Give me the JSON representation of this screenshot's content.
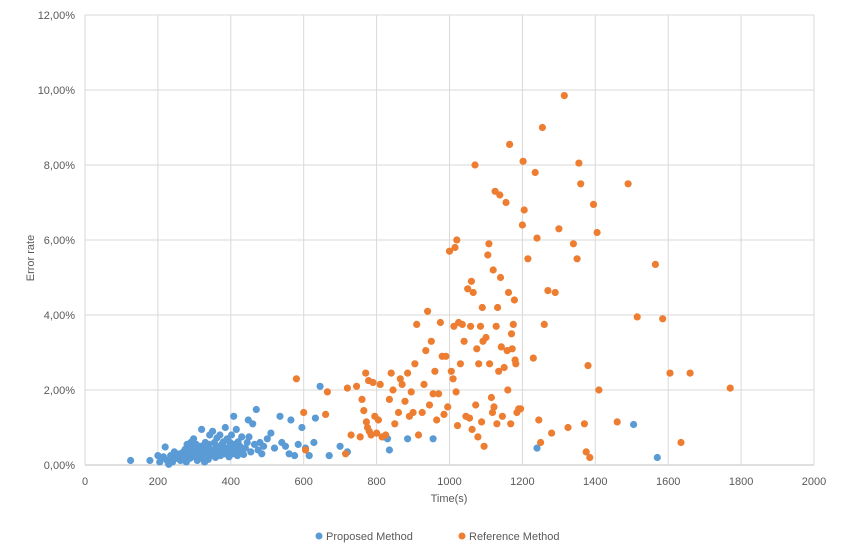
{
  "chart_data": {
    "type": "scatter",
    "xlabel": "Time(s)",
    "ylabel": "Error rate",
    "xlim": [
      0,
      2000
    ],
    "ylim": [
      0,
      0.12
    ],
    "x_ticks": [
      "0",
      "200",
      "400",
      "600",
      "800",
      "1000",
      "1200",
      "1400",
      "1600",
      "1800",
      "2000"
    ],
    "y_ticks": [
      "0,00%",
      "2,00%",
      "4,00%",
      "6,00%",
      "8,00%",
      "10,00%",
      "12,00%"
    ],
    "grid": true,
    "legend_position": "bottom",
    "series": [
      {
        "name": "Proposed Method",
        "color": "#5B9BD5",
        "points": [
          [
            125,
            0.0012
          ],
          [
            178,
            0.0012
          ],
          [
            200,
            0.0025
          ],
          [
            205,
            0.0008
          ],
          [
            210,
            0.0018
          ],
          [
            215,
            0.0022
          ],
          [
            220,
            0.0048
          ],
          [
            225,
            0.0012
          ],
          [
            230,
            0.0002
          ],
          [
            235,
            0.0025
          ],
          [
            238,
            0.0015
          ],
          [
            240,
            0.0008
          ],
          [
            245,
            0.0035
          ],
          [
            250,
            0.0028
          ],
          [
            252,
            0.0018
          ],
          [
            258,
            0.0022
          ],
          [
            260,
            0.003
          ],
          [
            262,
            0.0012
          ],
          [
            265,
            0.0025
          ],
          [
            270,
            0.0035
          ],
          [
            272,
            0.0015
          ],
          [
            275,
            0.0042
          ],
          [
            278,
            0.0008
          ],
          [
            280,
            0.0055
          ],
          [
            282,
            0.0025
          ],
          [
            285,
            0.0035
          ],
          [
            288,
            0.0018
          ],
          [
            290,
            0.006
          ],
          [
            292,
            0.0045
          ],
          [
            295,
            0.0028
          ],
          [
            298,
            0.007
          ],
          [
            300,
            0.0035
          ],
          [
            302,
            0.0022
          ],
          [
            305,
            0.0055
          ],
          [
            308,
            0.0012
          ],
          [
            310,
            0.004
          ],
          [
            312,
            0.003
          ],
          [
            315,
            0.0018
          ],
          [
            318,
            0.005
          ],
          [
            320,
            0.0095
          ],
          [
            322,
            0.0025
          ],
          [
            325,
            0.0035
          ],
          [
            328,
            0.0008
          ],
          [
            330,
            0.006
          ],
          [
            332,
            0.0045
          ],
          [
            335,
            0.003
          ],
          [
            338,
            0.0015
          ],
          [
            340,
            0.0055
          ],
          [
            342,
            0.008
          ],
          [
            345,
            0.0025
          ],
          [
            348,
            0.004
          ],
          [
            350,
            0.009
          ],
          [
            352,
            0.0035
          ],
          [
            355,
            0.006
          ],
          [
            358,
            0.002
          ],
          [
            360,
            0.005
          ],
          [
            362,
            0.0072
          ],
          [
            365,
            0.003
          ],
          [
            368,
            0.0045
          ],
          [
            370,
            0.008
          ],
          [
            372,
            0.0025
          ],
          [
            375,
            0.0055
          ],
          [
            378,
            0.004
          ],
          [
            380,
            0.0062
          ],
          [
            382,
            0.003
          ],
          [
            385,
            0.01
          ],
          [
            388,
            0.0045
          ],
          [
            390,
            0.007
          ],
          [
            392,
            0.0035
          ],
          [
            395,
            0.0022
          ],
          [
            398,
            0.006
          ],
          [
            400,
            0.0048
          ],
          [
            402,
            0.008
          ],
          [
            405,
            0.003
          ],
          [
            408,
            0.013
          ],
          [
            410,
            0.0055
          ],
          [
            412,
            0.004
          ],
          [
            415,
            0.0095
          ],
          [
            418,
            0.0025
          ],
          [
            420,
            0.0062
          ],
          [
            425,
            0.005
          ],
          [
            428,
            0.0035
          ],
          [
            430,
            0.0075
          ],
          [
            435,
            0.0028
          ],
          [
            440,
            0.0045
          ],
          [
            445,
            0.006
          ],
          [
            448,
            0.012
          ],
          [
            450,
            0.0075
          ],
          [
            455,
            0.0035
          ],
          [
            460,
            0.011
          ],
          [
            465,
            0.0055
          ],
          [
            470,
            0.0148
          ],
          [
            475,
            0.004
          ],
          [
            480,
            0.006
          ],
          [
            485,
            0.003
          ],
          [
            490,
            0.005
          ],
          [
            500,
            0.007
          ],
          [
            510,
            0.0085
          ],
          [
            520,
            0.0045
          ],
          [
            535,
            0.013
          ],
          [
            540,
            0.006
          ],
          [
            550,
            0.005
          ],
          [
            560,
            0.003
          ],
          [
            565,
            0.012
          ],
          [
            575,
            0.0025
          ],
          [
            585,
            0.0055
          ],
          [
            595,
            0.01
          ],
          [
            605,
            0.0045
          ],
          [
            615,
            0.0025
          ],
          [
            628,
            0.006
          ],
          [
            632,
            0.0125
          ],
          [
            645,
            0.021
          ],
          [
            670,
            0.0025
          ],
          [
            700,
            0.005
          ],
          [
            720,
            0.0035
          ],
          [
            820,
            0.0075
          ],
          [
            830,
            0.007
          ],
          [
            835,
            0.004
          ],
          [
            885,
            0.007
          ],
          [
            955,
            0.007
          ],
          [
            1240,
            0.0045
          ],
          [
            1505,
            0.0108
          ],
          [
            1570,
            0.002
          ]
        ]
      },
      {
        "name": "Reference Method",
        "color": "#ED7D31",
        "points": [
          [
            580,
            0.023
          ],
          [
            600,
            0.014
          ],
          [
            605,
            0.004
          ],
          [
            660,
            0.0135
          ],
          [
            665,
            0.0195
          ],
          [
            715,
            0.003
          ],
          [
            720,
            0.0205
          ],
          [
            730,
            0.008
          ],
          [
            745,
            0.021
          ],
          [
            755,
            0.0075
          ],
          [
            760,
            0.0175
          ],
          [
            765,
            0.0145
          ],
          [
            770,
            0.0245
          ],
          [
            772,
            0.0115
          ],
          [
            775,
            0.01
          ],
          [
            778,
            0.0225
          ],
          [
            780,
            0.009
          ],
          [
            785,
            0.008
          ],
          [
            790,
            0.022
          ],
          [
            795,
            0.013
          ],
          [
            800,
            0.0085
          ],
          [
            805,
            0.012
          ],
          [
            810,
            0.0215
          ],
          [
            815,
            0.0075
          ],
          [
            825,
            0.008
          ],
          [
            835,
            0.0175
          ],
          [
            840,
            0.0245
          ],
          [
            845,
            0.02
          ],
          [
            850,
            0.011
          ],
          [
            860,
            0.014
          ],
          [
            865,
            0.023
          ],
          [
            870,
            0.0215
          ],
          [
            878,
            0.017
          ],
          [
            885,
            0.0245
          ],
          [
            890,
            0.013
          ],
          [
            895,
            0.0195
          ],
          [
            900,
            0.014
          ],
          [
            905,
            0.027
          ],
          [
            910,
            0.0375
          ],
          [
            915,
            0.008
          ],
          [
            925,
            0.014
          ],
          [
            930,
            0.0215
          ],
          [
            935,
            0.0305
          ],
          [
            940,
            0.041
          ],
          [
            945,
            0.016
          ],
          [
            950,
            0.033
          ],
          [
            955,
            0.019
          ],
          [
            960,
            0.025
          ],
          [
            965,
            0.012
          ],
          [
            970,
            0.019
          ],
          [
            975,
            0.038
          ],
          [
            980,
            0.029
          ],
          [
            985,
            0.0135
          ],
          [
            990,
            0.029
          ],
          [
            995,
            0.0155
          ],
          [
            1000,
            0.057
          ],
          [
            1005,
            0.025
          ],
          [
            1010,
            0.023
          ],
          [
            1012,
            0.037
          ],
          [
            1015,
            0.058
          ],
          [
            1018,
            0.0195
          ],
          [
            1020,
            0.06
          ],
          [
            1022,
            0.0105
          ],
          [
            1025,
            0.038
          ],
          [
            1030,
            0.027
          ],
          [
            1035,
            0.0375
          ],
          [
            1040,
            0.033
          ],
          [
            1045,
            0.013
          ],
          [
            1050,
            0.047
          ],
          [
            1055,
            0.0125
          ],
          [
            1058,
            0.037
          ],
          [
            1060,
            0.049
          ],
          [
            1062,
            0.0095
          ],
          [
            1065,
            0.046
          ],
          [
            1070,
            0.08
          ],
          [
            1072,
            0.016
          ],
          [
            1075,
            0.031
          ],
          [
            1078,
            0.0075
          ],
          [
            1080,
            0.027
          ],
          [
            1085,
            0.037
          ],
          [
            1088,
            0.0115
          ],
          [
            1090,
            0.042
          ],
          [
            1092,
            0.033
          ],
          [
            1095,
            0.005
          ],
          [
            1100,
            0.034
          ],
          [
            1105,
            0.056
          ],
          [
            1108,
            0.059
          ],
          [
            1110,
            0.027
          ],
          [
            1115,
            0.018
          ],
          [
            1118,
            0.014
          ],
          [
            1120,
            0.052
          ],
          [
            1122,
            0.0155
          ],
          [
            1125,
            0.073
          ],
          [
            1128,
            0.037
          ],
          [
            1130,
            0.011
          ],
          [
            1132,
            0.042
          ],
          [
            1135,
            0.025
          ],
          [
            1138,
            0.072
          ],
          [
            1140,
            0.05
          ],
          [
            1142,
            0.0315
          ],
          [
            1145,
            0.013
          ],
          [
            1150,
            0.026
          ],
          [
            1155,
            0.07
          ],
          [
            1158,
            0.0305
          ],
          [
            1160,
            0.02
          ],
          [
            1162,
            0.046
          ],
          [
            1165,
            0.0855
          ],
          [
            1168,
            0.011
          ],
          [
            1170,
            0.035
          ],
          [
            1172,
            0.031
          ],
          [
            1175,
            0.0375
          ],
          [
            1178,
            0.044
          ],
          [
            1180,
            0.028
          ],
          [
            1182,
            0.027
          ],
          [
            1185,
            0.014
          ],
          [
            1190,
            0.015
          ],
          [
            1195,
            0.015
          ],
          [
            1200,
            0.064
          ],
          [
            1202,
            0.081
          ],
          [
            1205,
            0.068
          ],
          [
            1215,
            0.055
          ],
          [
            1230,
            0.0285
          ],
          [
            1235,
            0.078
          ],
          [
            1240,
            0.0605
          ],
          [
            1245,
            0.012
          ],
          [
            1250,
            0.006
          ],
          [
            1255,
            0.09
          ],
          [
            1260,
            0.0375
          ],
          [
            1270,
            0.0465
          ],
          [
            1280,
            0.0085
          ],
          [
            1290,
            0.046
          ],
          [
            1300,
            0.063
          ],
          [
            1315,
            0.0985
          ],
          [
            1325,
            0.01
          ],
          [
            1340,
            0.059
          ],
          [
            1350,
            0.055
          ],
          [
            1355,
            0.0805
          ],
          [
            1360,
            0.075
          ],
          [
            1370,
            0.011
          ],
          [
            1375,
            0.0035
          ],
          [
            1380,
            0.0265
          ],
          [
            1385,
            0.002
          ],
          [
            1395,
            0.0695
          ],
          [
            1405,
            0.062
          ],
          [
            1410,
            0.02
          ],
          [
            1460,
            0.0115
          ],
          [
            1490,
            0.075
          ],
          [
            1515,
            0.0395
          ],
          [
            1565,
            0.0535
          ],
          [
            1585,
            0.039
          ],
          [
            1605,
            0.0245
          ],
          [
            1635,
            0.006
          ],
          [
            1660,
            0.0245
          ],
          [
            1770,
            0.0205
          ]
        ]
      }
    ]
  }
}
